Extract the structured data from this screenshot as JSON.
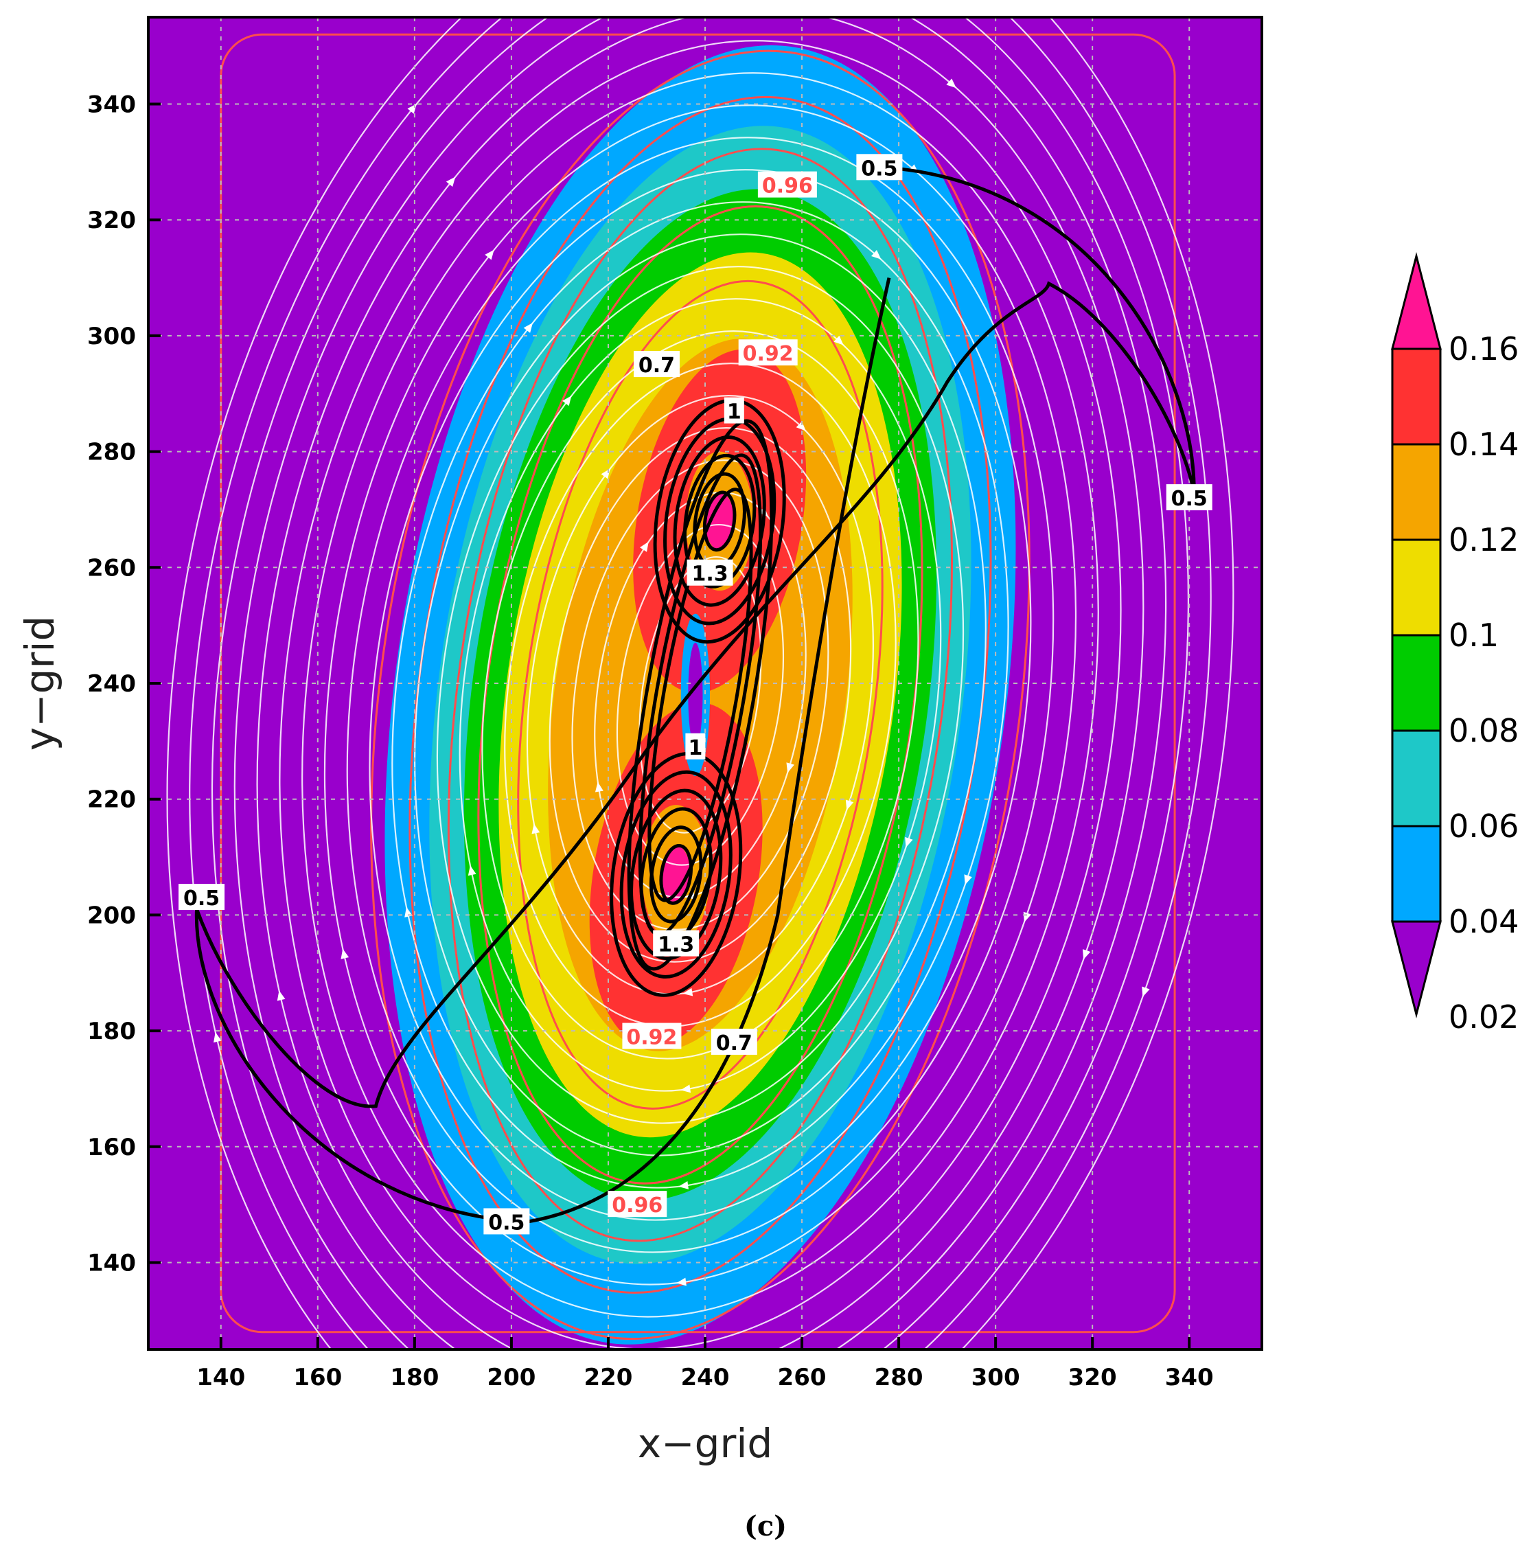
{
  "chart_data": {
    "type": "contour",
    "xlabel": "x−grid",
    "ylabel": "y−grid",
    "xlim": [
      125,
      355
    ],
    "ylim": [
      125,
      355
    ],
    "x_ticks": [
      140,
      160,
      180,
      200,
      220,
      240,
      260,
      280,
      300,
      320,
      340
    ],
    "y_ticks": [
      140,
      160,
      180,
      200,
      220,
      240,
      260,
      280,
      300,
      320,
      340
    ],
    "grid": true,
    "filled_field": {
      "colorbar_levels": [
        "0.02",
        "0.04",
        "0.06",
        "0.08",
        "0.1",
        "0.12",
        "0.14",
        "0.16"
      ],
      "colors": [
        "#9900cc",
        "#00a8ff",
        "#1ec8c8",
        "#00cc00",
        "#eedd00",
        "#f5a500",
        "#ff3232",
        "#ff1493"
      ],
      "centers": [
        {
          "x": 243,
          "y": 268
        },
        {
          "x": 234,
          "y": 207
        }
      ]
    },
    "black_contours": {
      "labels": [
        {
          "text": "0.5",
          "x": 276,
          "y": 329
        },
        {
          "text": "0.5",
          "x": 340,
          "y": 272
        },
        {
          "text": "0.5",
          "x": 136,
          "y": 203
        },
        {
          "text": "0.5",
          "x": 199,
          "y": 147
        },
        {
          "text": "0.7",
          "x": 230,
          "y": 295
        },
        {
          "text": "0.7",
          "x": 246,
          "y": 178
        },
        {
          "text": "1",
          "x": 246,
          "y": 287
        },
        {
          "text": "1",
          "x": 238,
          "y": 229
        },
        {
          "text": "1.3",
          "x": 241,
          "y": 259
        },
        {
          "text": "1.3",
          "x": 234,
          "y": 195
        }
      ]
    },
    "red_contours": {
      "labels": [
        {
          "text": "0.96",
          "x": 257,
          "y": 326
        },
        {
          "text": "0.92",
          "x": 253,
          "y": 297
        },
        {
          "text": "0.92",
          "x": 229,
          "y": 179
        },
        {
          "text": "0.96",
          "x": 226,
          "y": 150
        }
      ]
    },
    "streamlines": {
      "color": "#ffffff",
      "pattern": "closed circulation around vortex pair"
    }
  },
  "caption": "(c)"
}
